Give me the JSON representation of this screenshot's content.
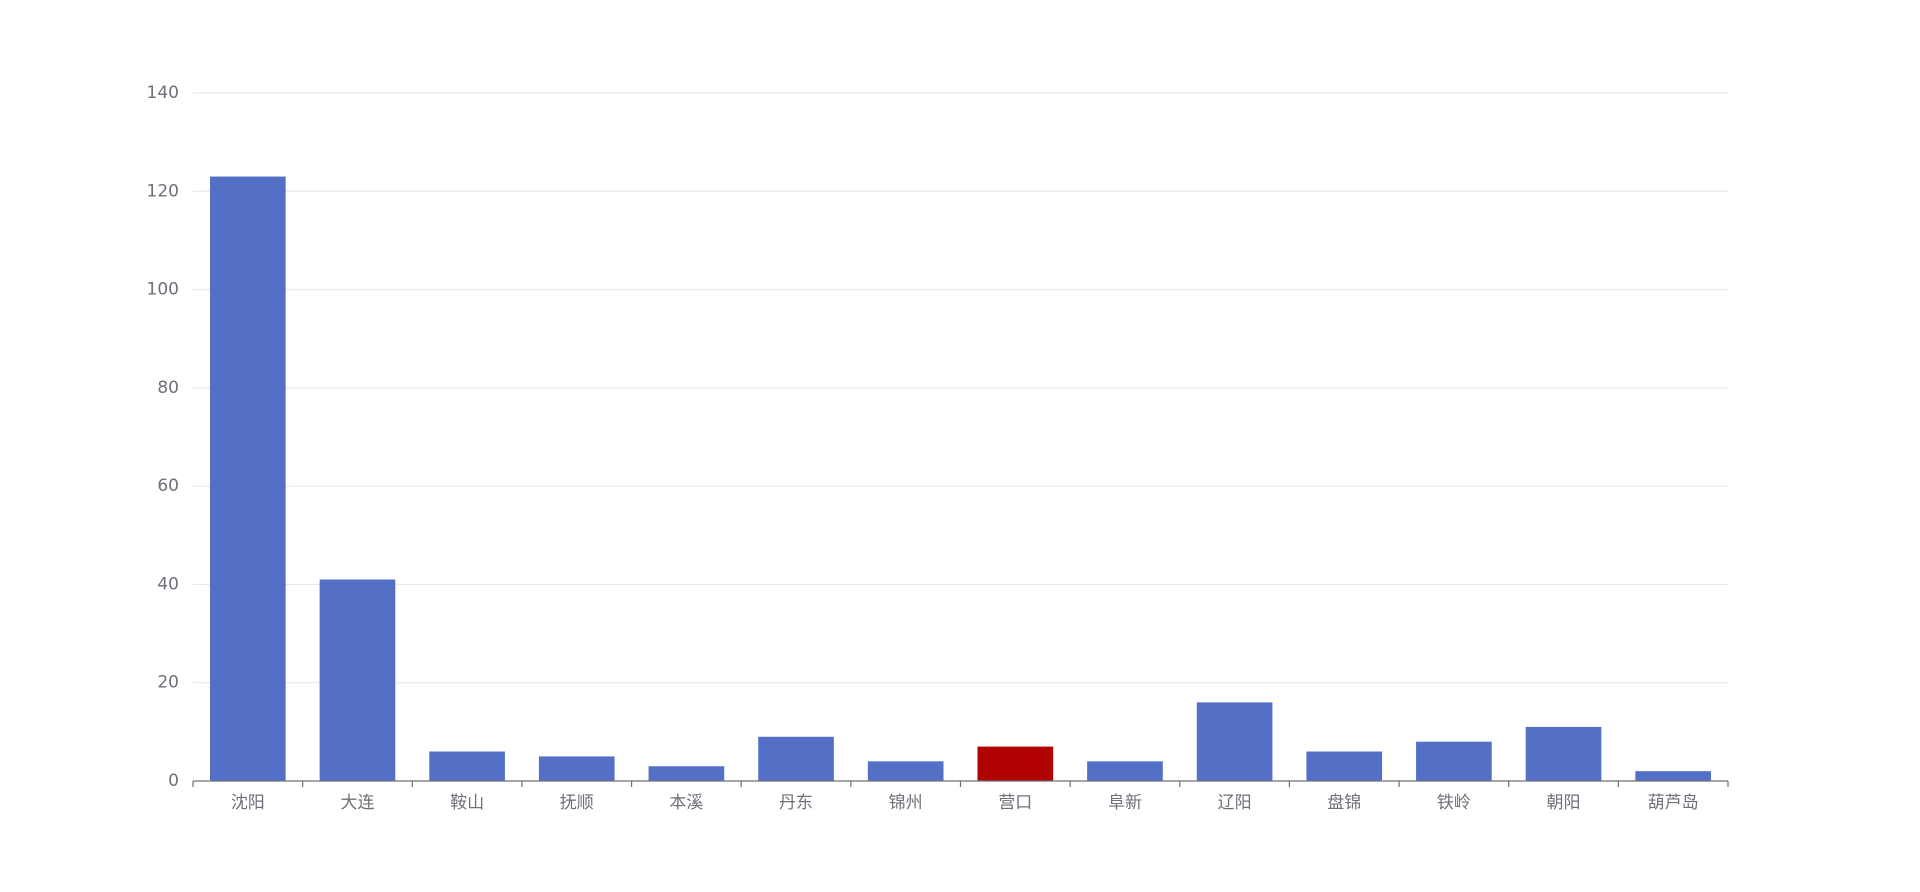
{
  "chart_data": {
    "type": "bar",
    "categories": [
      "沈阳",
      "大连",
      "鞍山",
      "抚顺",
      "本溪",
      "丹东",
      "锦州",
      "营口",
      "阜新",
      "辽阳",
      "盘锦",
      "铁岭",
      "朝阳",
      "葫芦岛"
    ],
    "values": [
      123,
      41,
      6,
      5,
      3,
      9,
      4,
      7,
      4,
      16,
      6,
      8,
      11,
      2
    ],
    "colors": [
      "#5470c6",
      "#5470c6",
      "#5470c6",
      "#5470c6",
      "#5470c6",
      "#5470c6",
      "#5470c6",
      "#b00000",
      "#5470c6",
      "#5470c6",
      "#5470c6",
      "#5470c6",
      "#5470c6",
      "#5470c6"
    ],
    "ylim": [
      0,
      140
    ],
    "yticks": [
      0,
      20,
      40,
      60,
      80,
      100,
      120,
      140
    ],
    "grid": true
  }
}
